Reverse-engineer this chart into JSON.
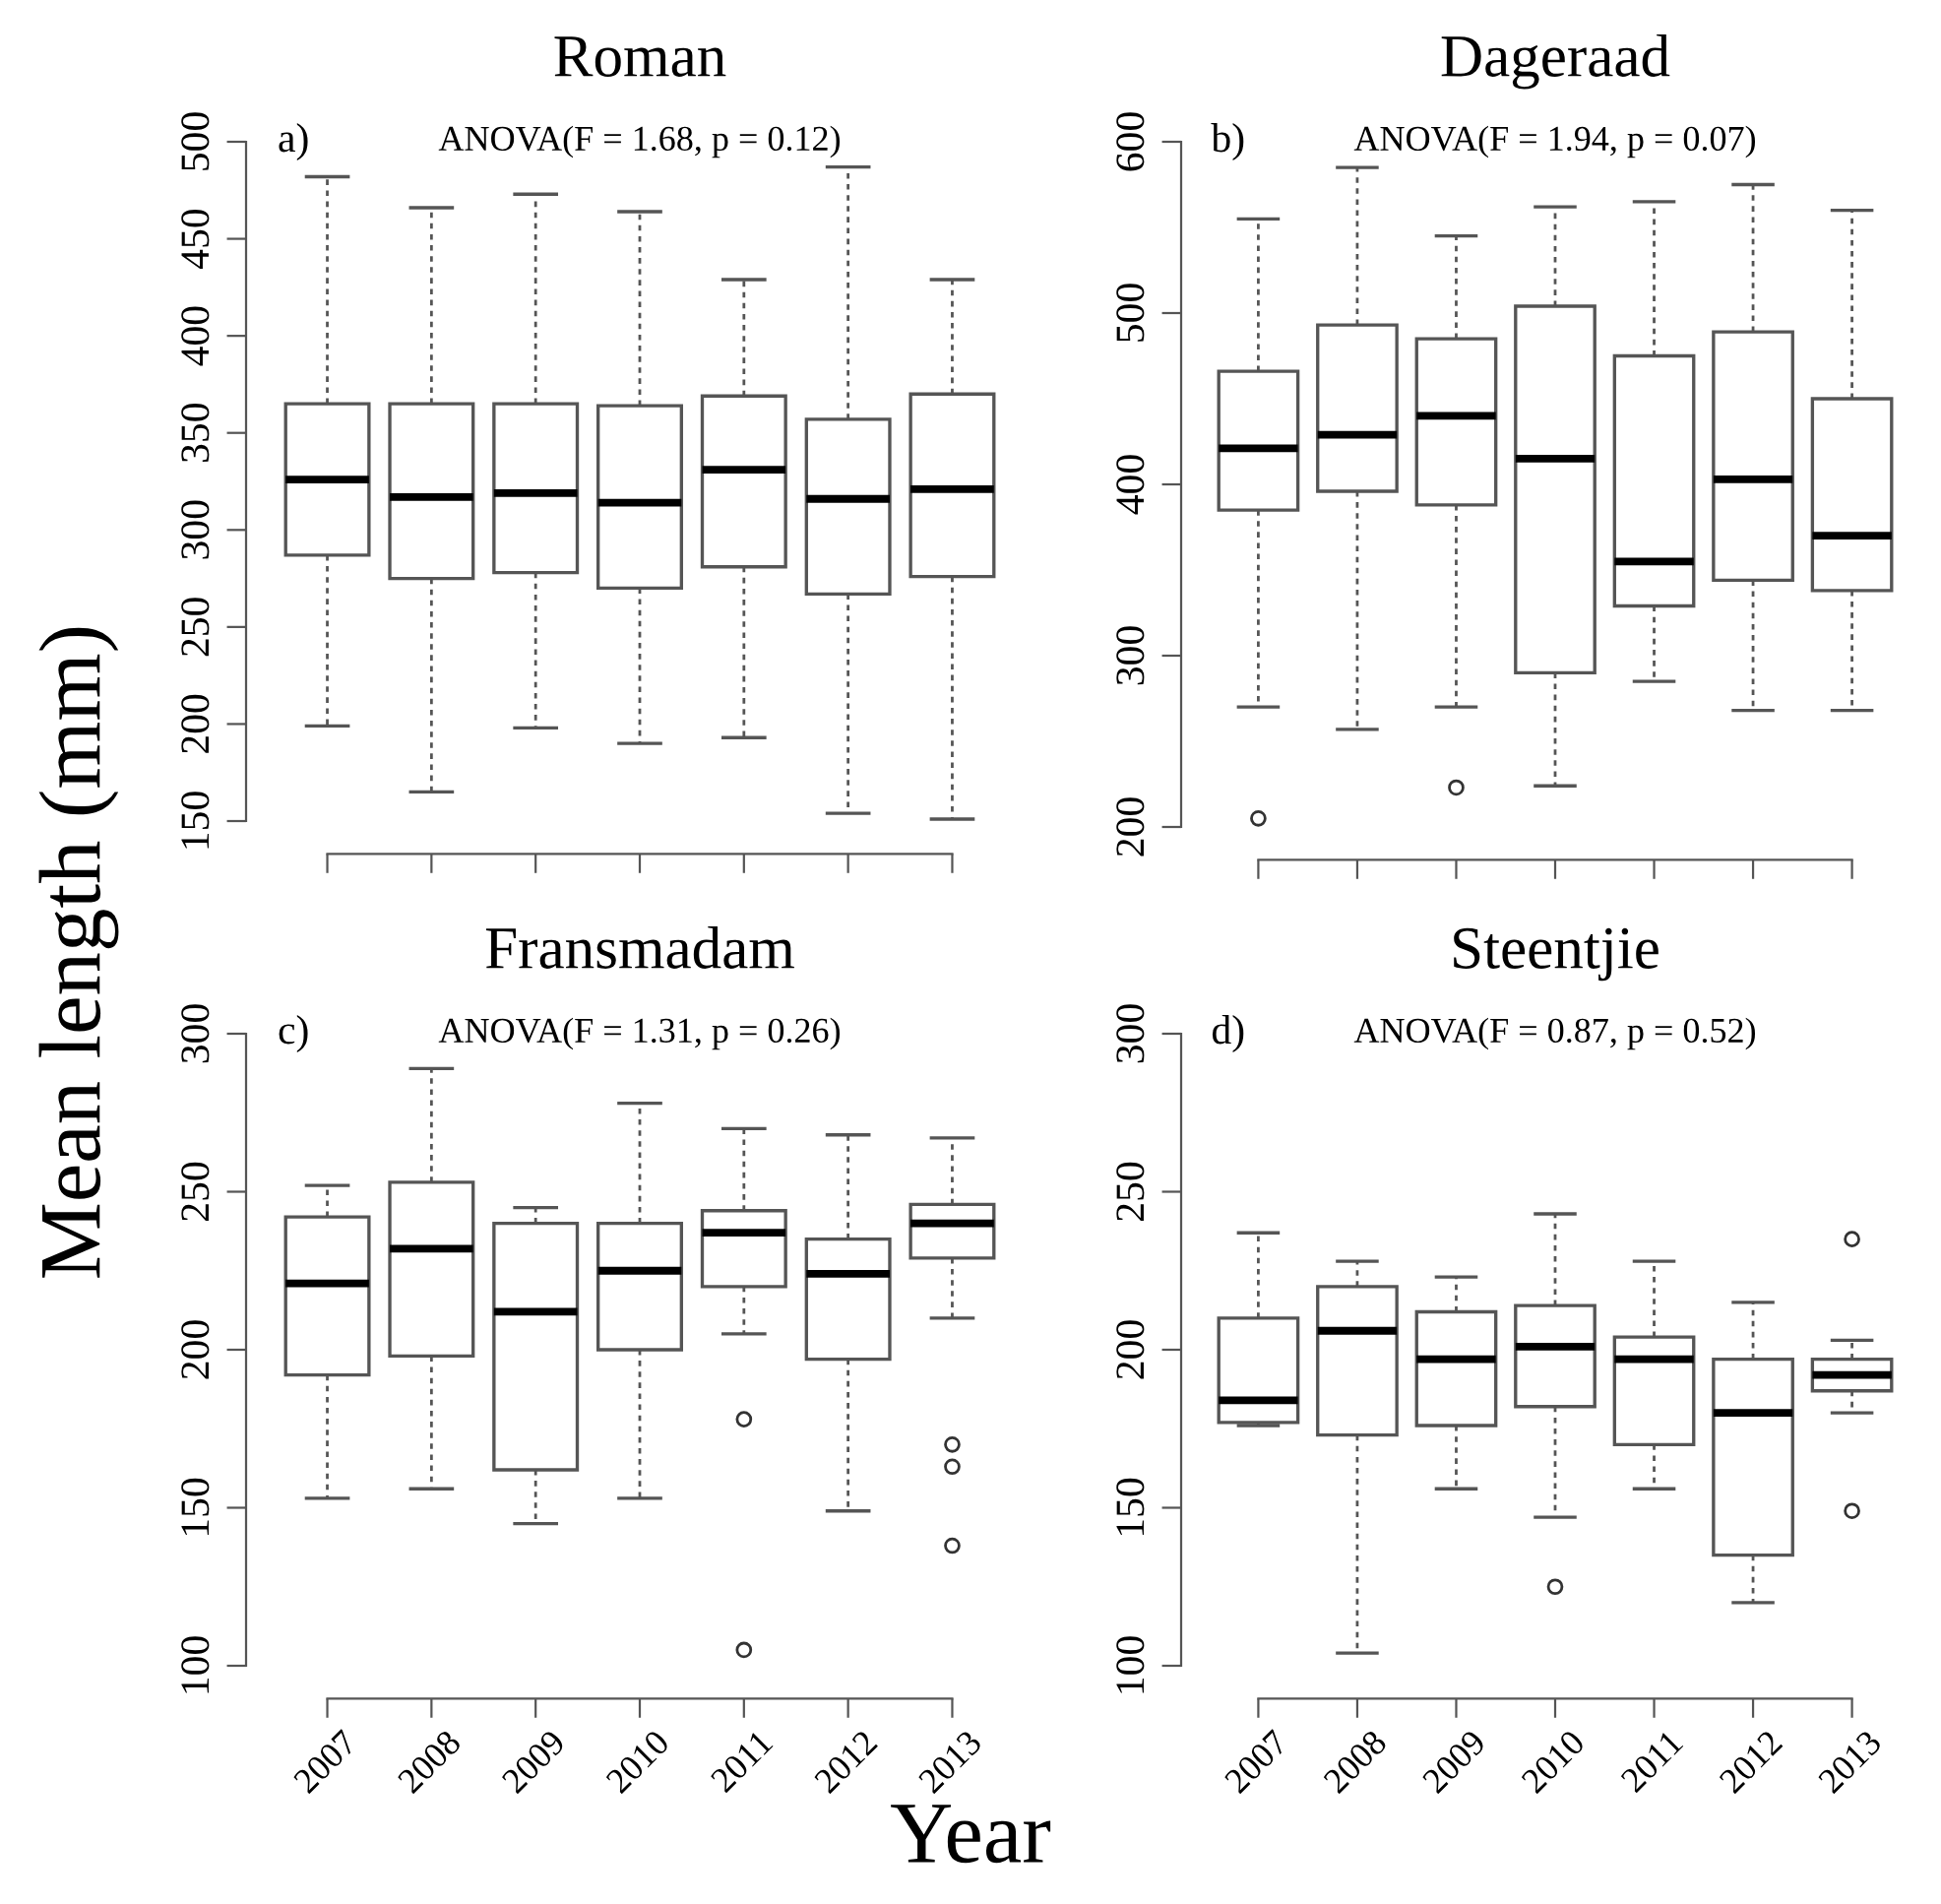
{
  "chart_data": [
    {
      "type": "box",
      "title": "Roman",
      "ylabel": "Mean length (mm)",
      "annotations": [
        "a)",
        "ANOVA(F = 1.68, p = 0.12)"
      ],
      "categories": [
        "2007",
        "2008",
        "2009",
        "2010",
        "2011",
        "2012",
        "2013"
      ],
      "ylim": [
        150,
        500
      ],
      "yticks": [
        150,
        200,
        250,
        300,
        350,
        400,
        450,
        500
      ],
      "tick_labels": "y",
      "boxes": [
        {
          "low": 199,
          "q1": 287,
          "median": 326,
          "q3": 365,
          "high": 482
        },
        {
          "low": 165,
          "q1": 275,
          "median": 317,
          "q3": 365,
          "high": 466
        },
        {
          "low": 198,
          "q1": 278,
          "median": 319,
          "q3": 365,
          "high": 473
        },
        {
          "low": 190,
          "q1": 270,
          "median": 314,
          "q3": 364,
          "high": 464
        },
        {
          "low": 193,
          "q1": 281,
          "median": 331,
          "q3": 369,
          "high": 429
        },
        {
          "low": 154,
          "q1": 267,
          "median": 316,
          "q3": 357,
          "high": 487
        },
        {
          "low": 151,
          "q1": 276,
          "median": 321,
          "q3": 370,
          "high": 429
        }
      ]
    },
    {
      "type": "box",
      "title": "Dageraad",
      "annotations": [
        "b)",
        "ANOVA(F = 1.94, p = 0.07)"
      ],
      "categories": [
        "2007",
        "2008",
        "2009",
        "2010",
        "2011",
        "2012",
        "2013"
      ],
      "ylim": [
        200,
        600
      ],
      "yticks": [
        200,
        300,
        400,
        500,
        600
      ],
      "tick_labels": "y",
      "boxes": [
        {
          "low": 270,
          "q1": 385,
          "median": 421,
          "q3": 466,
          "high": 555,
          "outliers": [
            205
          ]
        },
        {
          "low": 257,
          "q1": 396,
          "median": 429,
          "q3": 493,
          "high": 585
        },
        {
          "low": 270,
          "q1": 388,
          "median": 440,
          "q3": 485,
          "high": 545,
          "outliers": [
            223
          ]
        },
        {
          "low": 224,
          "q1": 290,
          "median": 415,
          "q3": 504,
          "high": 562
        },
        {
          "low": 285,
          "q1": 329,
          "median": 355,
          "q3": 475,
          "high": 565
        },
        {
          "low": 268,
          "q1": 344,
          "median": 403,
          "q3": 489,
          "high": 575
        },
        {
          "low": 268,
          "q1": 338,
          "median": 370,
          "q3": 450,
          "high": 560
        }
      ]
    },
    {
      "type": "box",
      "title": "Fransmadam",
      "xlabel": "Year",
      "annotations": [
        "c)",
        "ANOVA(F = 1.31, p = 0.26)"
      ],
      "categories": [
        "2007",
        "2008",
        "2009",
        "2010",
        "2011",
        "2012",
        "2013"
      ],
      "ylim": [
        100,
        300
      ],
      "yticks": [
        100,
        150,
        200,
        250,
        300
      ],
      "boxes": [
        {
          "low": 153,
          "q1": 192,
          "median": 221,
          "q3": 242,
          "high": 252
        },
        {
          "low": 156,
          "q1": 198,
          "median": 232,
          "q3": 253,
          "high": 289
        },
        {
          "low": 145,
          "q1": 162,
          "median": 212,
          "q3": 240,
          "high": 245
        },
        {
          "low": 153,
          "q1": 200,
          "median": 225,
          "q3": 240,
          "high": 278
        },
        {
          "low": 205,
          "q1": 220,
          "median": 237,
          "q3": 244,
          "high": 270,
          "outliers": [
            178,
            105
          ]
        },
        {
          "low": 149,
          "q1": 197,
          "median": 224,
          "q3": 235,
          "high": 268
        },
        {
          "low": 210,
          "q1": 229,
          "median": 240,
          "q3": 246,
          "high": 267,
          "outliers": [
            170,
            163,
            138
          ]
        }
      ]
    },
    {
      "type": "box",
      "title": "Steentjie",
      "annotations": [
        "d)",
        "ANOVA(F = 0.87, p = 0.52)"
      ],
      "categories": [
        "2007",
        "2008",
        "2009",
        "2010",
        "2011",
        "2012",
        "2013"
      ],
      "ylim": [
        100,
        300
      ],
      "yticks": [
        100,
        150,
        200,
        250,
        300
      ],
      "boxes": [
        {
          "low": 176,
          "q1": 177,
          "median": 184,
          "q3": 210,
          "high": 237
        },
        {
          "low": 104,
          "q1": 173,
          "median": 206,
          "q3": 220,
          "high": 228
        },
        {
          "low": 156,
          "q1": 176,
          "median": 197,
          "q3": 212,
          "high": 223
        },
        {
          "low": 147,
          "q1": 182,
          "median": 201,
          "q3": 214,
          "high": 243,
          "outliers": [
            125
          ]
        },
        {
          "low": 156,
          "q1": 170,
          "median": 197,
          "q3": 204,
          "high": 228
        },
        {
          "low": 120,
          "q1": 135,
          "median": 180,
          "q3": 197,
          "high": 215
        },
        {
          "low": 180,
          "q1": 187,
          "median": 192,
          "q3": 197,
          "high": 203,
          "outliers": [
            235,
            149
          ]
        }
      ]
    }
  ]
}
